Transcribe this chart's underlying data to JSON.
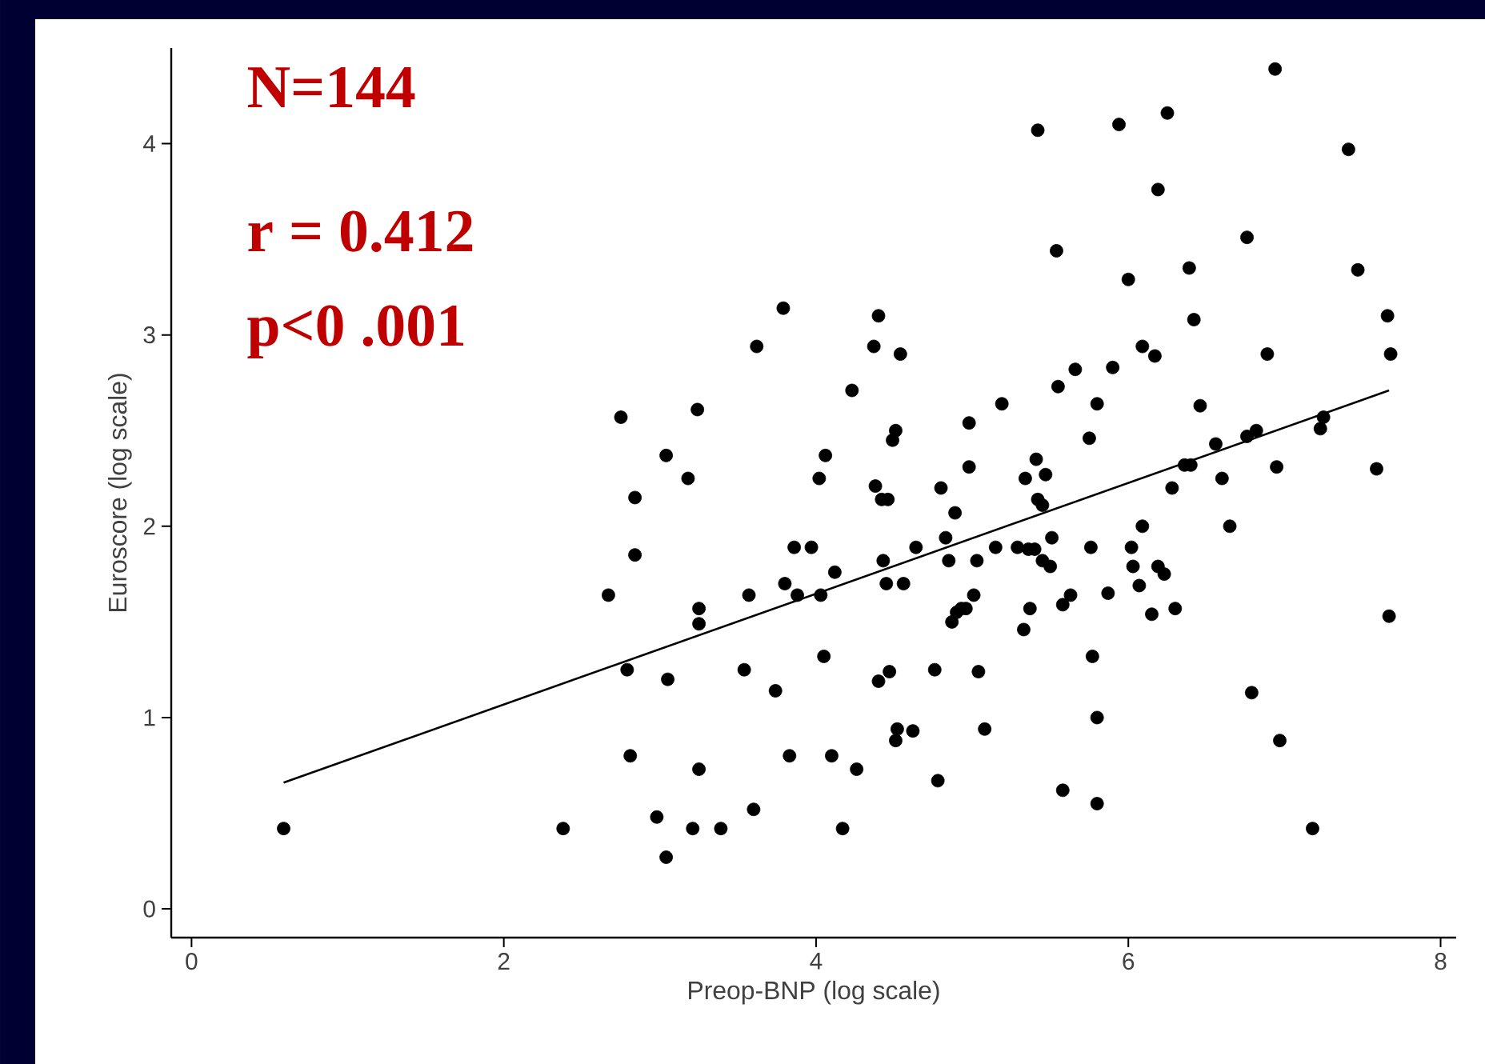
{
  "chart_data": {
    "type": "scatter",
    "xlabel": "Preop-BNP (log scale)",
    "ylabel": "Euroscore (log scale)",
    "annotations": [
      "N=144",
      "r = 0.412",
      "p<0 .001"
    ],
    "xlim": [
      -0.13,
      8.1
    ],
    "ylim": [
      -0.15,
      4.5
    ],
    "xticks": [
      0,
      2,
      4,
      6,
      8
    ],
    "yticks": [
      0,
      1,
      2,
      3,
      4
    ],
    "grid": false,
    "marker": "circle",
    "series": [
      {
        "type": "scatter",
        "color": "#000000",
        "x": [
          0.59,
          2.38,
          2.67,
          2.75,
          2.79,
          2.81,
          2.84,
          2.84,
          2.98,
          3.04,
          3.05,
          3.04,
          3.18,
          3.21,
          3.24,
          3.25,
          3.25,
          3.25,
          3.39,
          3.54,
          3.57,
          3.6,
          3.62,
          3.74,
          3.79,
          3.8,
          3.86,
          3.88,
          3.83,
          3.97,
          4.03,
          4.02,
          4.06,
          4.05,
          4.1,
          4.12,
          4.17,
          4.23,
          4.26,
          4.37,
          4.4,
          4.38,
          4.42,
          4.46,
          4.43,
          4.45,
          4.47,
          4.49,
          4.51,
          4.54,
          4.51,
          4.52,
          4.56,
          4.62,
          4.64,
          4.76,
          4.78,
          4.8,
          4.83,
          4.85,
          4.87,
          4.89,
          4.9,
          4.93,
          4.98,
          4.98,
          4.96,
          5.01,
          5.03,
          5.04,
          5.08,
          5.15,
          5.19,
          5.29,
          5.33,
          5.34,
          5.37,
          5.4,
          5.41,
          5.42,
          5.42,
          5.45,
          5.47,
          5.5,
          5.51,
          5.54,
          5.55,
          5.58,
          5.58,
          5.63,
          5.66,
          5.75,
          5.76,
          5.77,
          5.8,
          5.8,
          5.8,
          5.87,
          5.9,
          5.94,
          6.0,
          6.02,
          6.03,
          6.07,
          6.09,
          6.09,
          6.15,
          6.17,
          6.19,
          6.19,
          6.25,
          6.23,
          6.28,
          6.3,
          6.36,
          6.4,
          6.39,
          6.42,
          6.46,
          6.56,
          6.6,
          6.65,
          6.76,
          6.76,
          6.79,
          6.82,
          6.89,
          6.94,
          6.95,
          6.97,
          7.18,
          7.23,
          7.25,
          7.41,
          7.47,
          7.59,
          7.66,
          7.68,
          7.67,
          4.4,
          5.45,
          5.36
        ],
        "values": [
          0.42,
          0.42,
          1.64,
          2.57,
          1.25,
          0.8,
          2.15,
          1.85,
          0.48,
          2.37,
          1.2,
          0.27,
          2.25,
          0.42,
          2.61,
          1.57,
          1.49,
          0.73,
          0.42,
          1.25,
          1.64,
          0.52,
          2.94,
          1.14,
          3.14,
          1.7,
          1.89,
          1.64,
          0.8,
          1.89,
          1.64,
          2.25,
          2.37,
          1.32,
          0.8,
          1.76,
          0.42,
          2.71,
          0.73,
          2.94,
          3.1,
          2.21,
          2.14,
          2.14,
          1.82,
          1.7,
          1.24,
          2.45,
          2.5,
          2.9,
          0.88,
          0.94,
          1.7,
          0.93,
          1.89,
          1.25,
          0.67,
          2.2,
          1.94,
          1.82,
          1.5,
          2.07,
          1.55,
          1.57,
          2.54,
          2.31,
          1.57,
          1.64,
          1.82,
          1.24,
          0.94,
          1.89,
          2.64,
          1.89,
          1.46,
          2.25,
          1.57,
          1.88,
          2.35,
          2.14,
          4.07,
          1.82,
          2.27,
          1.79,
          1.94,
          3.44,
          2.73,
          0.62,
          1.59,
          1.64,
          2.82,
          2.46,
          1.89,
          1.32,
          0.55,
          1.0,
          2.64,
          1.65,
          2.83,
          4.1,
          3.29,
          1.89,
          1.79,
          1.69,
          2.94,
          2.0,
          1.54,
          2.89,
          3.76,
          1.79,
          4.16,
          1.75,
          2.2,
          1.57,
          2.32,
          2.32,
          3.35,
          3.08,
          2.63,
          2.43,
          2.25,
          2.0,
          3.51,
          2.47,
          1.13,
          2.5,
          2.9,
          4.39,
          2.31,
          0.88,
          0.42,
          2.51,
          2.57,
          3.97,
          3.34,
          2.3,
          3.1,
          2.9,
          1.53,
          1.19,
          2.11,
          1.88
        ]
      },
      {
        "type": "line",
        "color": "#000000",
        "marker": "none",
        "x": [
          0.59,
          7.67
        ],
        "values": [
          0.66,
          2.71
        ]
      }
    ]
  }
}
